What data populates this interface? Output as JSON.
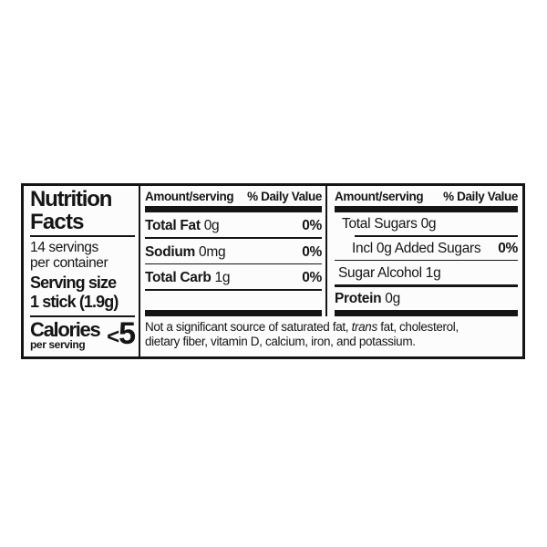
{
  "page": {
    "background": "#ffffff"
  },
  "label": {
    "ink_color": "#151515",
    "background": "#fcfcfc",
    "left": {
      "title_line1": "Nutrition",
      "title_line2": "Facts",
      "servings_line1": "14 servings",
      "servings_line2": "per container",
      "serving_size_label": "Serving size",
      "serving_size_value": "1 stick (1.9g)",
      "calories_label": "Calories",
      "calories_sublabel": "per serving",
      "calories_prefix": "<",
      "calories_value": "5"
    },
    "mid": {
      "header_amount": "Amount/serving",
      "header_dv": "% Daily Value",
      "rows": [
        {
          "bold": "Total Fat",
          "rest": " 0g",
          "dv": "0%"
        },
        {
          "bold": "Sodium",
          "rest": " 0mg",
          "dv": "0%"
        },
        {
          "bold": "Total Carb",
          "rest": " 1g",
          "dv": "0%"
        }
      ]
    },
    "right": {
      "header_amount": "Amount/serving",
      "header_dv": "% Daily Value",
      "rows": [
        {
          "bold": "",
          "rest": "Total Sugars 0g",
          "dv": ""
        },
        {
          "bold": "",
          "rest": "Incl 0g Added Sugars",
          "dv": "0%"
        },
        {
          "bold": "",
          "rest": "Sugar Alcohol 1g",
          "dv": ""
        },
        {
          "bold": "Protein",
          "rest": " 0g",
          "dv": ""
        }
      ]
    },
    "footnote": {
      "pre_italic": "Not a significant source of saturated fat, ",
      "italic": "trans",
      "post_italic": " fat, cholesterol,",
      "line2": "dietary fiber, vitamin D, calcium, iron, and potassium."
    }
  }
}
